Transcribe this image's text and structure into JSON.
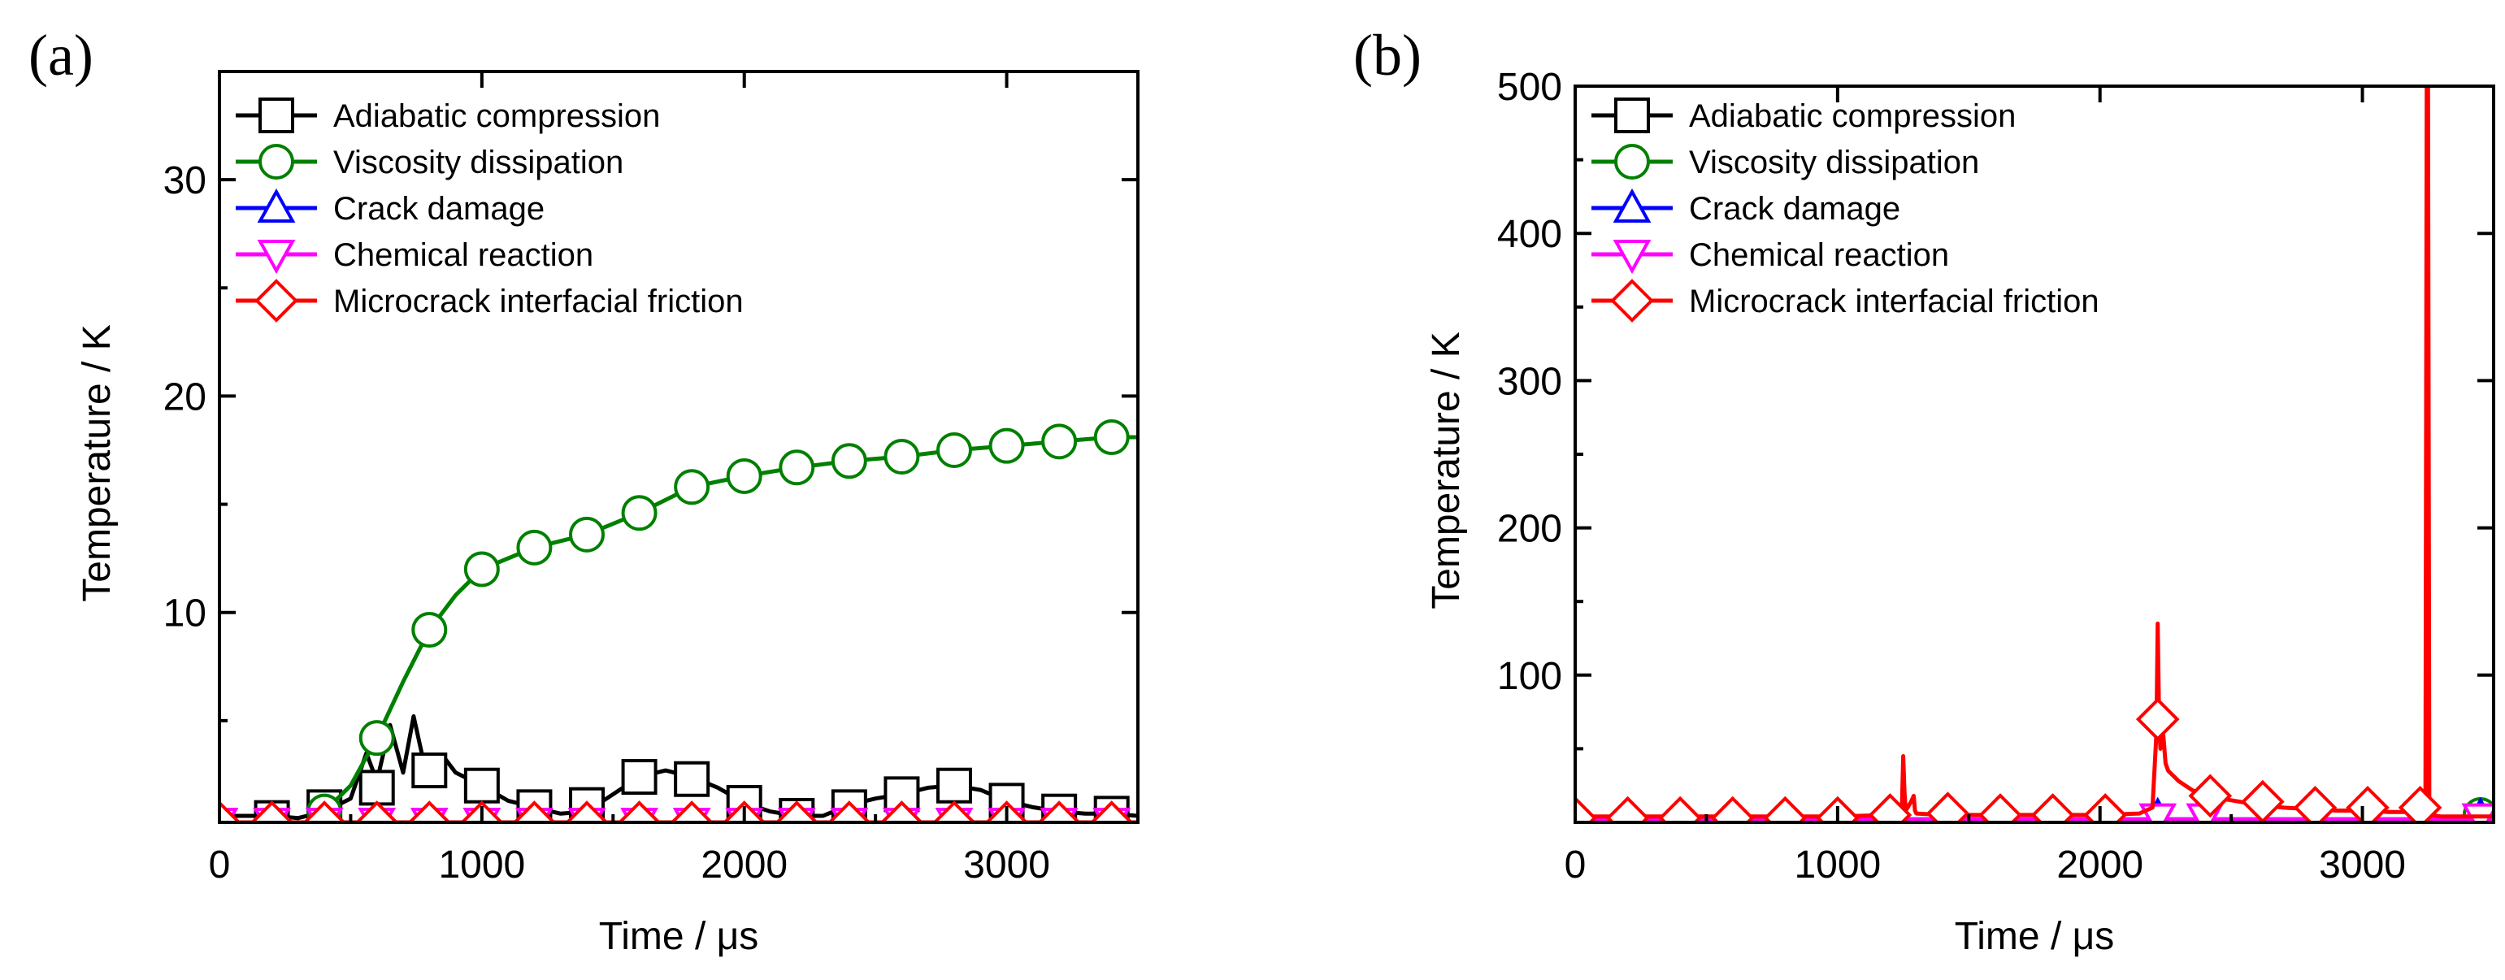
{
  "chart_data": [
    {
      "panel_label": "(a)",
      "type": "line",
      "xlabel": "Time / μs",
      "ylabel": "Temperature / K",
      "xlim": [
        0,
        3500
      ],
      "ylim": [
        0.3,
        35
      ],
      "xticks": [
        0,
        1000,
        2000,
        3000
      ],
      "yticks": [
        10,
        20,
        30
      ],
      "grid": false,
      "legend_position": "top-left",
      "series": [
        {
          "name": "Adiabatic compression",
          "color": "#000000",
          "marker": "square",
          "x": [
            0,
            200,
            300,
            400,
            500,
            560,
            600,
            650,
            700,
            740,
            780,
            800,
            850,
            900,
            1000,
            1100,
            1200,
            1300,
            1400,
            1500,
            1600,
            1700,
            1800,
            1900,
            2000,
            2100,
            2200,
            2300,
            2400,
            2500,
            2600,
            2700,
            2800,
            2900,
            3000,
            3100,
            3200,
            3300,
            3400,
            3500
          ],
          "y": [
            0.6,
            0.6,
            0.5,
            0.8,
            1.4,
            3.5,
            2.2,
            4.8,
            2.6,
            5.2,
            3.0,
            2.7,
            3.4,
            2.6,
            2.0,
            1.3,
            1.0,
            0.7,
            0.8,
            1.6,
            2.4,
            2.7,
            2.4,
            1.9,
            1.2,
            0.8,
            0.6,
            0.6,
            1.1,
            1.4,
            1.6,
            1.9,
            2.0,
            1.8,
            1.3,
            1.0,
            0.8,
            0.7,
            0.7,
            0.6
          ],
          "marker_x": [
            200,
            400,
            600,
            800,
            1000,
            1200,
            1400,
            1600,
            1800,
            2000,
            2200,
            2400,
            2600,
            2800,
            3000,
            3200,
            3400
          ],
          "marker_y": [
            0.5,
            1.0,
            1.9,
            2.7,
            2.0,
            1.0,
            1.1,
            2.4,
            2.3,
            1.2,
            0.6,
            1.0,
            1.6,
            2.0,
            1.3,
            0.8,
            0.7
          ]
        },
        {
          "name": "Viscosity dissipation",
          "color": "#008000",
          "marker": "circle",
          "x": [
            350,
            400,
            500,
            600,
            700,
            800,
            900,
            1000,
            1200,
            1400,
            1600,
            1800,
            2000,
            2200,
            2400,
            2600,
            2800,
            3000,
            3200,
            3400,
            3500
          ],
          "y": [
            0.3,
            0.8,
            2.0,
            4.2,
            6.8,
            9.2,
            10.8,
            12.0,
            13.0,
            13.6,
            14.6,
            15.8,
            16.3,
            16.7,
            17.0,
            17.2,
            17.5,
            17.7,
            17.9,
            18.1,
            18.1
          ],
          "marker_x": [
            400,
            600,
            800,
            1000,
            1200,
            1400,
            1600,
            1800,
            2000,
            2200,
            2400,
            2600,
            2800,
            3000,
            3200,
            3400
          ],
          "marker_y": [
            0.8,
            4.2,
            9.2,
            12.0,
            13.0,
            13.6,
            14.6,
            15.8,
            16.3,
            16.7,
            17.0,
            17.2,
            17.5,
            17.7,
            17.9,
            18.1
          ]
        },
        {
          "name": "Crack damage",
          "color": "#0000FF",
          "marker": "triangle-up",
          "x": [
            0,
            3500
          ],
          "y": [
            0.3,
            0.3
          ],
          "marker_x": [],
          "marker_y": []
        },
        {
          "name": "Chemical reaction",
          "color": "#FF00FF",
          "marker": "triangle-down",
          "x": [
            0,
            3500
          ],
          "y": [
            0.3,
            0.3
          ],
          "marker_x": [
            0,
            200,
            400,
            600,
            800,
            1000,
            1200,
            1400,
            1600,
            1800,
            2000,
            2200,
            2400,
            2600,
            2800,
            3000,
            3200,
            3400
          ],
          "marker_y": [
            0.3,
            0.3,
            0.3,
            0.3,
            0.3,
            0.3,
            0.3,
            0.3,
            0.3,
            0.3,
            0.3,
            0.3,
            0.3,
            0.3,
            0.3,
            0.3,
            0.3,
            0.3
          ]
        },
        {
          "name": "Microcrack interfacial friction",
          "color": "#FF0000",
          "marker": "diamond",
          "x": [
            0,
            3500
          ],
          "y": [
            0.3,
            0.3
          ],
          "marker_x": [
            0,
            200,
            400,
            600,
            800,
            1000,
            1200,
            1400,
            1600,
            1800,
            2000,
            2200,
            2400,
            2600,
            2800,
            3000,
            3200,
            3400
          ],
          "marker_y": [
            0.3,
            0.3,
            0.3,
            0.3,
            0.3,
            0.3,
            0.3,
            0.3,
            0.3,
            0.3,
            0.3,
            0.3,
            0.3,
            0.3,
            0.3,
            0.3,
            0.3,
            0.3
          ]
        }
      ]
    },
    {
      "panel_label": "(b)",
      "type": "line",
      "xlabel": "Time / μs",
      "ylabel": "Temperature / K",
      "xlim": [
        0,
        3500
      ],
      "ylim": [
        0,
        500
      ],
      "xticks": [
        0,
        1000,
        2000,
        3000
      ],
      "yticks": [
        100,
        200,
        300,
        400,
        500
      ],
      "grid": false,
      "legend_position": "top-left",
      "series": [
        {
          "name": "Adiabatic compression",
          "color": "#000000",
          "marker": "square",
          "x": [
            0,
            3500
          ],
          "y": [
            2,
            2
          ],
          "marker_x": [],
          "marker_y": []
        },
        {
          "name": "Viscosity dissipation",
          "color": "#008000",
          "marker": "circle",
          "x": [
            0,
            3500
          ],
          "y": [
            2,
            2
          ],
          "marker_x": [
            3450
          ],
          "marker_y": [
            5
          ]
        },
        {
          "name": "Crack damage",
          "color": "#0000FF",
          "marker": "triangle-up",
          "x": [
            0,
            3500
          ],
          "y": [
            2,
            2
          ],
          "marker_x": [
            2220,
            3450
          ],
          "marker_y": [
            4,
            4
          ]
        },
        {
          "name": "Chemical reaction",
          "color": "#FF00FF",
          "marker": "triangle-down",
          "x": [
            0,
            3500
          ],
          "y": [
            2,
            2
          ],
          "marker_x": [
            2220,
            2400,
            3450
          ],
          "marker_y": [
            3,
            3,
            3
          ]
        },
        {
          "name": "Microcrack interfacial friction",
          "color": "#FF0000",
          "marker": "diamond",
          "x": [
            0,
            1000,
            1200,
            1245,
            1250,
            1255,
            1260,
            1280,
            1290,
            1295,
            1300,
            1400,
            1600,
            1800,
            2000,
            2150,
            2200,
            2215,
            2220,
            2225,
            2230,
            2240,
            2250,
            2260,
            2300,
            2350,
            2400,
            2500,
            2600,
            2700,
            2800,
            2900,
            3000,
            3100,
            3200,
            3240,
            3245,
            3250,
            3255,
            3260,
            3300,
            3400,
            3500
          ],
          "y": [
            4,
            4,
            5,
            10,
            45,
            20,
            8,
            14,
            18,
            8,
            6,
            5,
            5,
            5,
            5,
            6,
            10,
            60,
            135,
            70,
            50,
            62,
            40,
            35,
            28,
            22,
            18,
            15,
            12,
            10,
            9,
            8,
            8,
            7,
            7,
            8,
            500,
            500,
            8,
            5,
            4,
            4,
            4
          ],
          "marker_x": [
            0,
            200,
            400,
            600,
            800,
            1000,
            1200,
            1420,
            1620,
            1820,
            2020,
            2220,
            2420,
            2620,
            2820,
            3020,
            3220
          ],
          "marker_y": [
            3,
            3,
            3,
            3,
            3,
            3,
            5,
            6,
            5,
            5,
            5,
            70,
            18,
            14,
            10,
            10,
            10
          ]
        }
      ]
    }
  ]
}
